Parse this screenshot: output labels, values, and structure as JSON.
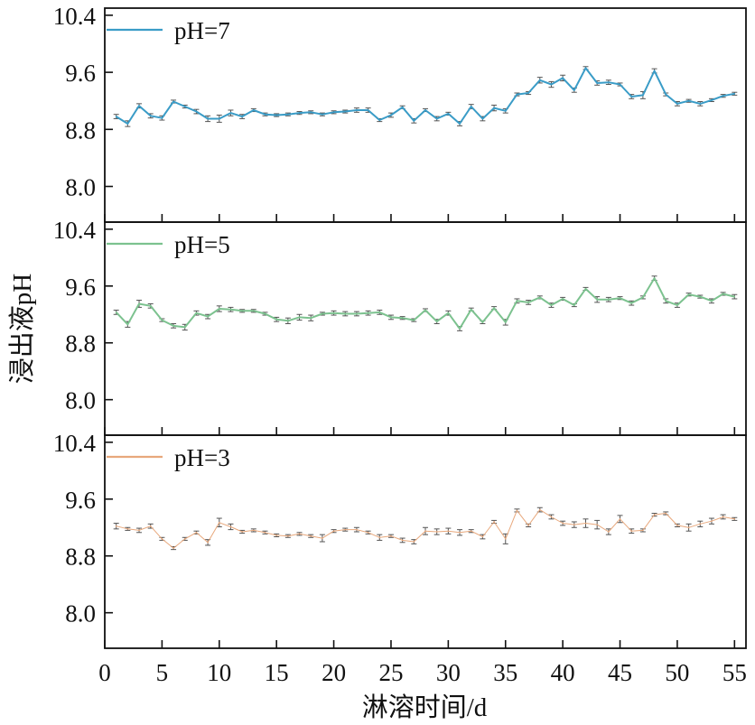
{
  "figure": {
    "ylabel": "浸出液pH",
    "xlabel": "淋溶时间/d"
  },
  "chart_data": [
    {
      "type": "line",
      "name": "panel-ph7",
      "legend": "pH=7",
      "color": "#3a9cc7",
      "x": [
        1,
        2,
        3,
        4,
        5,
        6,
        7,
        8,
        9,
        10,
        11,
        12,
        13,
        14,
        15,
        16,
        17,
        18,
        19,
        20,
        21,
        22,
        23,
        24,
        25,
        26,
        27,
        28,
        29,
        30,
        31,
        32,
        33,
        34,
        35,
        36,
        37,
        38,
        39,
        40,
        41,
        42,
        43,
        44,
        45,
        46,
        47,
        48,
        49,
        50,
        51,
        52,
        53,
        54,
        55
      ],
      "y": [
        8.98,
        8.88,
        9.13,
        8.99,
        8.96,
        9.19,
        9.12,
        9.05,
        8.95,
        8.95,
        9.03,
        8.98,
        9.07,
        9.01,
        9.0,
        9.01,
        9.03,
        9.04,
        9.01,
        9.04,
        9.05,
        9.07,
        9.07,
        8.93,
        9.0,
        9.11,
        8.92,
        9.07,
        8.95,
        9.02,
        8.88,
        9.12,
        8.95,
        9.1,
        9.06,
        9.29,
        9.31,
        9.49,
        9.43,
        9.52,
        9.35,
        9.66,
        9.45,
        9.46,
        9.43,
        9.26,
        9.28,
        9.62,
        9.29,
        9.16,
        9.2,
        9.16,
        9.21,
        9.27,
        9.3
      ],
      "err": [
        0.03,
        0.04,
        0.03,
        0.03,
        0.03,
        0.02,
        0.02,
        0.03,
        0.04,
        0.05,
        0.04,
        0.03,
        0.02,
        0.02,
        0.02,
        0.02,
        0.02,
        0.02,
        0.02,
        0.02,
        0.02,
        0.03,
        0.03,
        0.02,
        0.03,
        0.02,
        0.03,
        0.02,
        0.03,
        0.02,
        0.03,
        0.03,
        0.03,
        0.04,
        0.03,
        0.02,
        0.02,
        0.04,
        0.04,
        0.04,
        0.03,
        0.02,
        0.03,
        0.03,
        0.02,
        0.03,
        0.05,
        0.03,
        0.02,
        0.03,
        0.02,
        0.03,
        0.02,
        0.02,
        0.02
      ],
      "ylim": [
        7.5,
        10.5
      ],
      "yticks": [
        8.0,
        8.8,
        9.6,
        10.4
      ],
      "ytick_labels": [
        "8.0",
        "8.8",
        "9.6",
        "10.4"
      ]
    },
    {
      "type": "line",
      "name": "panel-ph5",
      "legend": "pH=5",
      "color": "#7cc28f",
      "x": [
        1,
        2,
        3,
        4,
        5,
        6,
        7,
        8,
        9,
        10,
        11,
        12,
        13,
        14,
        15,
        16,
        17,
        18,
        19,
        20,
        21,
        22,
        23,
        24,
        25,
        26,
        27,
        28,
        29,
        30,
        31,
        32,
        33,
        34,
        35,
        36,
        37,
        38,
        39,
        40,
        41,
        42,
        43,
        44,
        45,
        46,
        47,
        48,
        49,
        50,
        51,
        52,
        53,
        54,
        55
      ],
      "y": [
        9.23,
        9.06,
        9.35,
        9.32,
        9.12,
        9.04,
        9.02,
        9.22,
        9.17,
        9.28,
        9.27,
        9.25,
        9.25,
        9.21,
        9.13,
        9.11,
        9.16,
        9.15,
        9.21,
        9.22,
        9.21,
        9.21,
        9.22,
        9.23,
        9.16,
        9.15,
        9.12,
        9.26,
        9.1,
        9.22,
        9.0,
        9.27,
        9.09,
        9.29,
        9.09,
        9.39,
        9.37,
        9.44,
        9.33,
        9.42,
        9.33,
        9.56,
        9.41,
        9.41,
        9.43,
        9.36,
        9.44,
        9.71,
        9.39,
        9.33,
        9.48,
        9.45,
        9.39,
        9.49,
        9.45
      ],
      "err": [
        0.03,
        0.04,
        0.05,
        0.03,
        0.02,
        0.03,
        0.04,
        0.03,
        0.03,
        0.04,
        0.03,
        0.02,
        0.02,
        0.02,
        0.03,
        0.04,
        0.04,
        0.04,
        0.02,
        0.03,
        0.03,
        0.03,
        0.03,
        0.03,
        0.03,
        0.02,
        0.02,
        0.02,
        0.03,
        0.03,
        0.03,
        0.02,
        0.02,
        0.02,
        0.04,
        0.03,
        0.03,
        0.02,
        0.03,
        0.02,
        0.02,
        0.02,
        0.04,
        0.03,
        0.02,
        0.03,
        0.02,
        0.03,
        0.03,
        0.03,
        0.02,
        0.02,
        0.03,
        0.02,
        0.03
      ],
      "ylim": [
        7.5,
        10.5
      ],
      "yticks": [
        8.0,
        8.8,
        9.6,
        10.4
      ],
      "ytick_labels": [
        "8.0",
        "8.8",
        "9.6",
        "10.4"
      ]
    },
    {
      "type": "line",
      "name": "panel-ph3",
      "legend": "pH=3",
      "color": "#e8a87c",
      "x": [
        1,
        2,
        3,
        4,
        5,
        6,
        7,
        8,
        9,
        10,
        11,
        12,
        13,
        14,
        15,
        16,
        17,
        18,
        19,
        20,
        21,
        22,
        23,
        24,
        25,
        26,
        27,
        28,
        29,
        30,
        31,
        32,
        33,
        34,
        35,
        36,
        37,
        38,
        39,
        40,
        41,
        42,
        43,
        44,
        45,
        46,
        47,
        48,
        49,
        50,
        51,
        52,
        53,
        54,
        55
      ],
      "y": [
        9.22,
        9.18,
        9.16,
        9.22,
        9.04,
        8.91,
        9.04,
        9.13,
        8.99,
        9.27,
        9.21,
        9.14,
        9.16,
        9.13,
        9.09,
        9.08,
        9.11,
        9.08,
        9.05,
        9.15,
        9.17,
        9.17,
        9.13,
        9.06,
        9.08,
        9.02,
        9.0,
        9.15,
        9.14,
        9.15,
        9.13,
        9.15,
        9.07,
        9.28,
        9.04,
        9.44,
        9.23,
        9.45,
        9.35,
        9.26,
        9.24,
        9.26,
        9.24,
        9.14,
        9.32,
        9.15,
        9.16,
        9.38,
        9.4,
        9.23,
        9.2,
        9.25,
        9.29,
        9.35,
        9.32
      ],
      "err": [
        0.04,
        0.02,
        0.03,
        0.03,
        0.02,
        0.02,
        0.02,
        0.02,
        0.04,
        0.06,
        0.04,
        0.02,
        0.02,
        0.02,
        0.02,
        0.02,
        0.02,
        0.02,
        0.05,
        0.02,
        0.02,
        0.03,
        0.02,
        0.04,
        0.02,
        0.03,
        0.03,
        0.05,
        0.04,
        0.04,
        0.04,
        0.02,
        0.03,
        0.02,
        0.07,
        0.02,
        0.02,
        0.03,
        0.03,
        0.03,
        0.04,
        0.06,
        0.06,
        0.04,
        0.05,
        0.03,
        0.02,
        0.02,
        0.02,
        0.02,
        0.05,
        0.04,
        0.04,
        0.03,
        0.02
      ],
      "ylim": [
        7.5,
        10.5
      ],
      "yticks": [
        8.0,
        8.8,
        9.6,
        10.4
      ],
      "ytick_labels": [
        "8.0",
        "8.8",
        "9.6",
        "10.4"
      ],
      "xlim": [
        0,
        56
      ],
      "xticks": [
        0,
        5,
        10,
        15,
        20,
        25,
        30,
        35,
        40,
        45,
        50,
        55
      ]
    }
  ]
}
